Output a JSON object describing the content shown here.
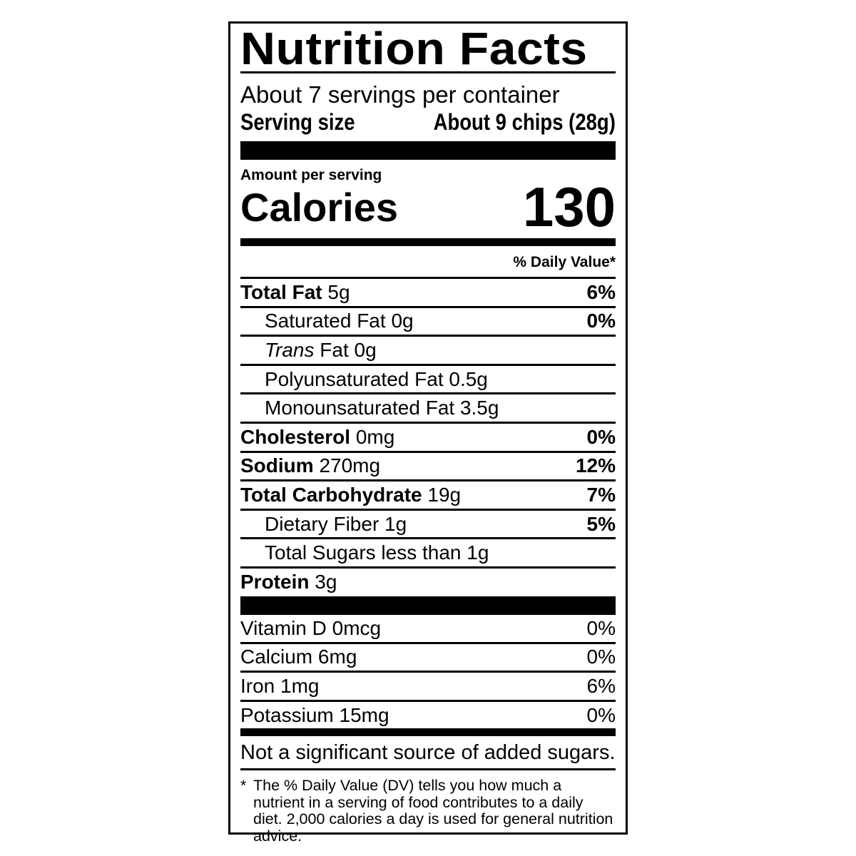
{
  "title": "Nutrition Facts",
  "servings_per_container": "About 7 servings per container",
  "serving_size": {
    "label": "Serving size",
    "value": "About 9 chips (28g)"
  },
  "amount_per_serving": "Amount per serving",
  "calories": {
    "label": "Calories",
    "value": "130"
  },
  "daily_value_header": "% Daily Value*",
  "nutrients": [
    {
      "name": "Total Fat",
      "amount": "5g",
      "dv": "6%"
    },
    {
      "name": "Saturated Fat",
      "amount": "0g",
      "dv": "0%"
    },
    {
      "name_italic": "Trans",
      "name": "Fat",
      "amount": "0g"
    },
    {
      "name": "Polyunsaturated Fat",
      "amount": "0.5g"
    },
    {
      "name": "Monounsaturated Fat",
      "amount": "3.5g"
    },
    {
      "name": "Cholesterol",
      "amount": "0mg",
      "dv": "0%"
    },
    {
      "name": "Sodium",
      "amount": "270mg",
      "dv": "12%"
    },
    {
      "name": "Total Carbohydrate",
      "amount": "19g",
      "dv": "7%"
    },
    {
      "name": "Dietary Fiber",
      "amount": "1g",
      "dv": "5%"
    },
    {
      "name": "Total Sugars",
      "amount": "less than 1g"
    },
    {
      "name": "Protein",
      "amount": "3g"
    }
  ],
  "vitamins": [
    {
      "name": "Vitamin D",
      "amount": "0mcg",
      "dv": "0%"
    },
    {
      "name": "Calcium",
      "amount": "6mg",
      "dv": "0%"
    },
    {
      "name": "Iron",
      "amount": "1mg",
      "dv": "6%"
    },
    {
      "name": "Potassium",
      "amount": "15mg",
      "dv": "0%"
    }
  ],
  "added_sugars_note": "Not a significant source of added sugars.",
  "footnote": {
    "mark": "*",
    "text": "The % Daily Value (DV) tells you how much a nutrient in a serving of food contributes to a daily diet. 2,000 calories a day is used for general nutrition advice."
  }
}
